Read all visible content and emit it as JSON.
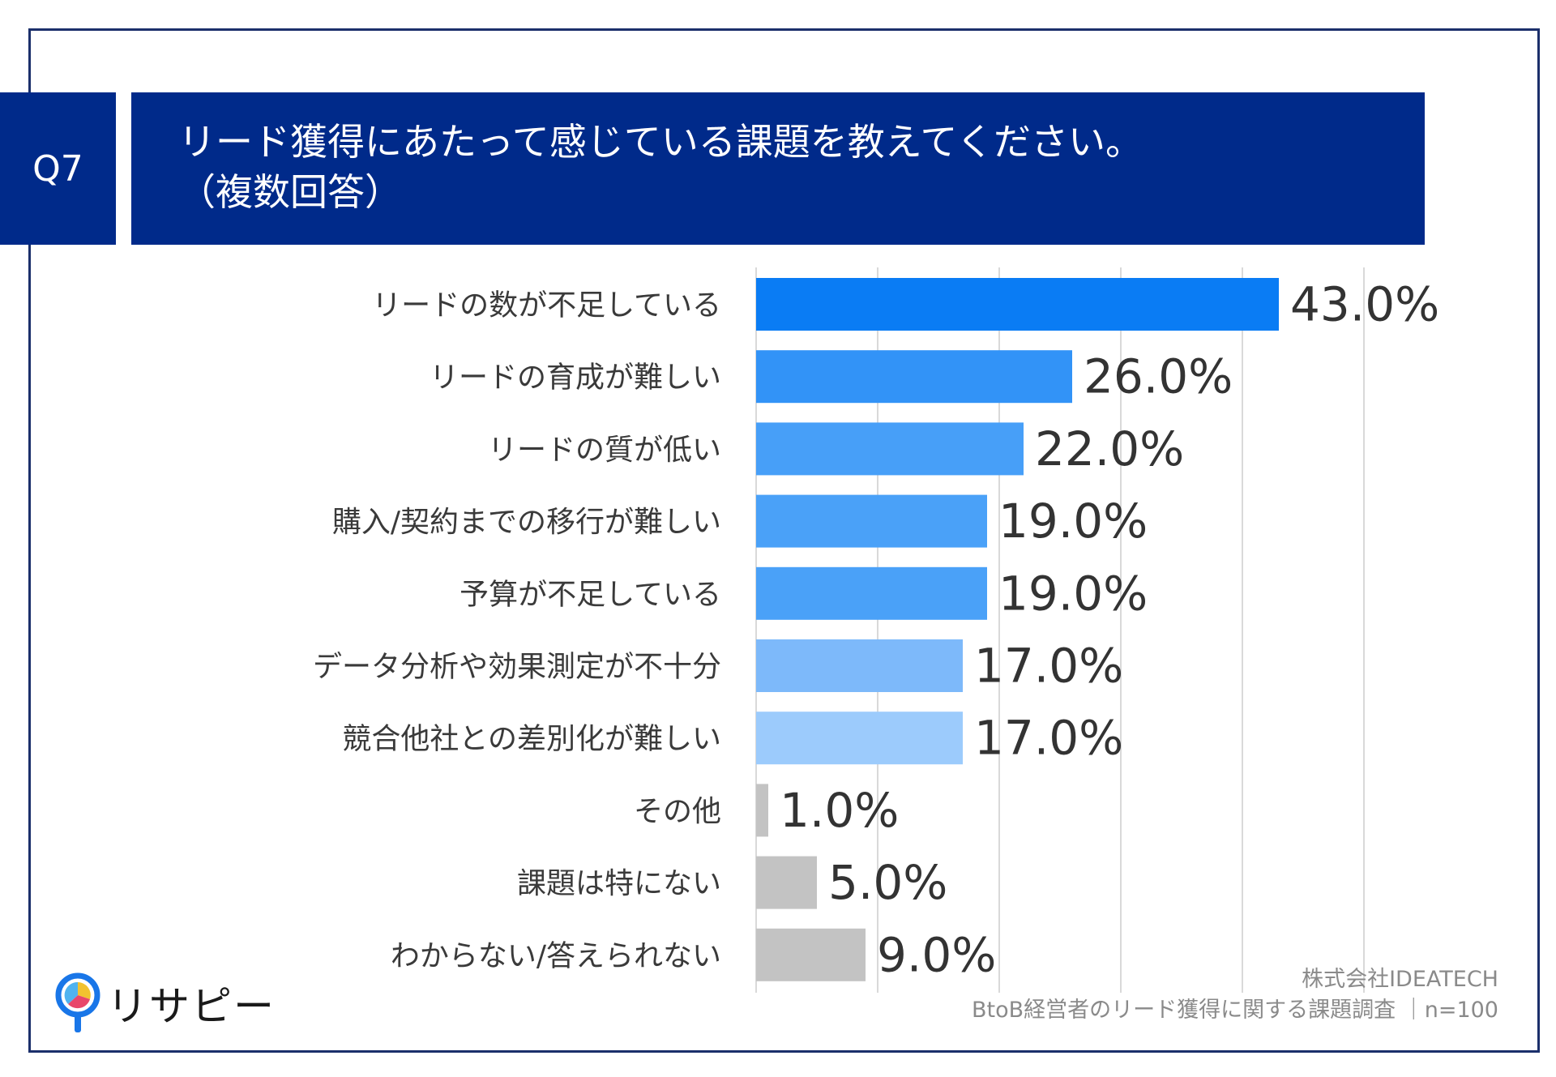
{
  "question": {
    "number": "Q7",
    "title_line1": "リード獲得にあたって感じている課題を教えてください。",
    "title_line2": "（複数回答）"
  },
  "chart_data": {
    "type": "bar",
    "orientation": "horizontal",
    "categories": [
      "リードの数が不足している",
      "リードの育成が難しい",
      "リードの質が低い",
      "購入/契約までの移行が難しい",
      "予算が不足している",
      "データ分析や効果測定が不十分",
      "競合他社との差別化が難しい",
      "その他",
      "課題は特にない",
      "わからない/答えられない"
    ],
    "values": [
      43.0,
      26.0,
      22.0,
      19.0,
      19.0,
      17.0,
      17.0,
      1.0,
      5.0,
      9.0
    ],
    "value_labels": [
      "43.0%",
      "26.0%",
      "22.0%",
      "19.0%",
      "19.0%",
      "17.0%",
      "17.0%",
      "1.0%",
      "5.0%",
      "9.0%"
    ],
    "bar_colors": [
      "#0a7cf4",
      "#3293f7",
      "#479ff8",
      "#4aa1f8",
      "#4aa1f8",
      "#7db9fa",
      "#9ccbfc",
      "#c3c3c3",
      "#c3c3c3",
      "#c3c3c3"
    ],
    "xlim": [
      0,
      50
    ],
    "grid": true,
    "legend": "none"
  },
  "footer": {
    "source_line1": "株式会社IDEATECH",
    "source_line2": "BtoB経営者のリード獲得に関する課題調査 ｜n=100"
  },
  "logo": {
    "text": "リサピー",
    "icon": "pin-pie-icon"
  },
  "colors": {
    "header_bg": "#002a8a",
    "frame": "#1b2f6b",
    "grid": "#d9d9d9",
    "label_text": "#3a3a3a",
    "value_text": "#333333"
  }
}
